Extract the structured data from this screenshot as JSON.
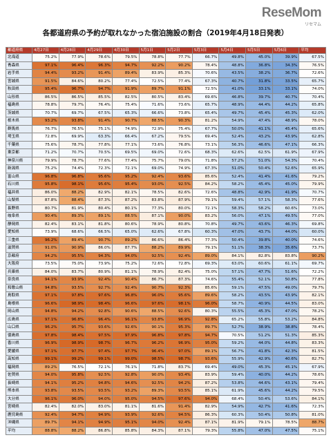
{
  "logo": {
    "name": "ReseMom",
    "sub": "リセマム"
  },
  "title": "各都道府県の予約が取れなかった宿泊施設の割合（2019年4月18日発表）",
  "table": {
    "header": [
      "都道府県",
      "4月27日",
      "4月28日",
      "4月29日",
      "4月30日",
      "5月1日",
      "5月2日",
      "5月3日",
      "5月4日",
      "5月5日",
      "5月6日",
      "平均"
    ],
    "rows": [
      [
        "北海道",
        "75.2%",
        "77.9%",
        "78.6%",
        "79.5%",
        "78.8%",
        "77.7%",
        "66.7%",
        "49.8%",
        "45.0%",
        "39.9%",
        "67.5%"
      ],
      [
        "青森県",
        "97.1%",
        "96.4%",
        "96.3%",
        "94.7%",
        "92.2%",
        "90.2%",
        "78.4%",
        "48.8%",
        "36.8%",
        "34.3%",
        "76.5%"
      ],
      [
        "岩手県",
        "94.4%",
        "93.2%",
        "91.4%",
        "89.4%",
        "83.9%",
        "85.3%",
        "70.6%",
        "43.5%",
        "38.2%",
        "36.7%",
        "72.6%"
      ],
      [
        "宮城県",
        "91.5%",
        "84.6%",
        "80.2%",
        "77.4%",
        "72.5%",
        "77.4%",
        "67.3%",
        "40.7%",
        "31.8%",
        "33.5%",
        "65.7%"
      ],
      [
        "秋田県",
        "95.4%",
        "96.7%",
        "94.7%",
        "91.9%",
        "89.7%",
        "91.1%",
        "72.5%",
        "41.0%",
        "33.1%",
        "33.1%",
        "74.0%"
      ],
      [
        "山形県",
        "86.5%",
        "86.5%",
        "85.5%",
        "82.5%",
        "80.5%",
        "83.4%",
        "69.6%",
        "46.8%",
        "39.7%",
        "40.7%",
        "70.4%"
      ],
      [
        "福島県",
        "78.8%",
        "79.7%",
        "76.4%",
        "75.4%",
        "71.6%",
        "73.6%",
        "65.7%",
        "48.9%",
        "44.4%",
        "44.2%",
        "65.8%"
      ],
      [
        "茨城県",
        "70.7%",
        "69.7%",
        "67.5%",
        "65.3%",
        "66.6%",
        "73.8%",
        "65.4%",
        "49.7%",
        "45.4%",
        "45.3%",
        "62.0%"
      ],
      [
        "栃木県",
        "93.2%",
        "93.8%",
        "91.4%",
        "90.7%",
        "88.5%",
        "90.3%",
        "81.2%",
        "54.9%",
        "47.4%",
        "48.9%",
        "78.0%"
      ],
      [
        "群馬県",
        "76.7%",
        "76.5%",
        "75.1%",
        "74.9%",
        "72.9%",
        "75.4%",
        "67.7%",
        "50.0%",
        "41.1%",
        "45.4%",
        "65.6%"
      ],
      [
        "埼玉県",
        "72.8%",
        "69.9%",
        "63.3%",
        "66.4%",
        "67.2%",
        "79.5%",
        "69.4%",
        "52.4%",
        "43.2%",
        "43.9%",
        "62.8%"
      ],
      [
        "千葉県",
        "75.6%",
        "78.7%",
        "77.8%",
        "77.1%",
        "73.6%",
        "76.8%",
        "73.1%",
        "56.3%",
        "46.6%",
        "47.1%",
        "66.3%"
      ],
      [
        "東京都",
        "71.2%",
        "70.7%",
        "70.5%",
        "69.5%",
        "69.0%",
        "72.6%",
        "68.3%",
        "62.6%",
        "62.5%",
        "61.9%",
        "67.9%"
      ],
      [
        "神奈川県",
        "79.9%",
        "78.7%",
        "77.6%",
        "77.4%",
        "75.7%",
        "79.0%",
        "71.8%",
        "57.2%",
        "51.0%",
        "54.3%",
        "70.4%"
      ],
      [
        "新潟県",
        "75.2%",
        "74.4%",
        "72.3%",
        "72.1%",
        "69.0%",
        "74.9%",
        "67.3%",
        "51.0%",
        "50.4%",
        "52.6%",
        "65.9%"
      ],
      [
        "富山県",
        "96.8%",
        "96.8%",
        "95.6%",
        "95.2%",
        "92.4%",
        "93.6%",
        "85.6%",
        "52.4%",
        "41.4%",
        "41.6%",
        "79.2%"
      ],
      [
        "石川県",
        "95.8%",
        "98.1%",
        "95.6%",
        "95.4%",
        "93.0%",
        "92.5%",
        "84.2%",
        "58.2%",
        "45.4%",
        "45.0%",
        "79.9%"
      ],
      [
        "福井県",
        "86.0%",
        "88.2%",
        "82.9%",
        "82.1%",
        "78.5%",
        "82.6%",
        "72.6%",
        "48.8%",
        "42.9%",
        "41.9%",
        "70.7%"
      ],
      [
        "山梨県",
        "87.8%",
        "88.4%",
        "87.3%",
        "87.2%",
        "83.8%",
        "87.9%",
        "79.1%",
        "59.4%",
        "57.1%",
        "58.3%",
        "77.6%"
      ],
      [
        "長野県",
        "80.7%",
        "81.9%",
        "80.4%",
        "80.1%",
        "77.3%",
        "80.0%",
        "72.1%",
        "58.3%",
        "58.2%",
        "60.6%",
        "73.0%"
      ],
      [
        "岐阜県",
        "90.4%",
        "89.3%",
        "89.1%",
        "88.5%",
        "87.1%",
        "90.0%",
        "83.2%",
        "56.0%",
        "47.1%",
        "49.5%",
        "77.0%"
      ],
      [
        "静岡県",
        "82.4%",
        "83.1%",
        "81.8%",
        "80.6%",
        "78.9%",
        "80.8%",
        "70.8%",
        "49.7%",
        "43.6%",
        "46.3%",
        "69.8%"
      ],
      [
        "愛知県",
        "73.9%",
        "68.6%",
        "66.5%",
        "65.0%",
        "62.6%",
        "67.8%",
        "60.3%",
        "47.0%",
        "43.7%",
        "44.0%",
        "60.0%"
      ],
      [
        "三重県",
        "96.2%",
        "89.4%",
        "90.7%",
        "89.2%",
        "86.6%",
        "86.4%",
        "77.3%",
        "50.4%",
        "39.8%",
        "40.0%",
        "74.6%"
      ],
      [
        "滋賀県",
        "91.0%",
        "90.9%",
        "86.0%",
        "87.7%",
        "88.2%",
        "89.9%",
        "79.1%",
        "51.1%",
        "38.3%",
        "35.6%",
        "73.7%"
      ],
      [
        "京都府",
        "94.2%",
        "95.5%",
        "94.3%",
        "94.0%",
        "92.5%",
        "92.4%",
        "89.0%",
        "84.1%",
        "82.8%",
        "83.8%",
        "90.2%"
      ],
      [
        "大阪府",
        "73.5%",
        "75.0%",
        "73.9%",
        "75.2%",
        "72.6%",
        "72.8%",
        "69.3%",
        "63.0%",
        "60.6%",
        "61.1%",
        "69.7%"
      ],
      [
        "兵庫県",
        "84.0%",
        "83.7%",
        "80.9%",
        "81.1%",
        "78.9%",
        "82.4%",
        "75.0%",
        "57.1%",
        "47.7%",
        "51.6%",
        "72.2%"
      ],
      [
        "奈良県",
        "94.1%",
        "93.9%",
        "92.4%",
        "90.4%",
        "86.7%",
        "87.3%",
        "74.6%",
        "55.4%",
        "52.1%",
        "50.8%",
        "77.8%"
      ],
      [
        "和歌山県",
        "94.8%",
        "93.5%",
        "92.7%",
        "92.4%",
        "90.7%",
        "92.3%",
        "85.6%",
        "59.1%",
        "47.5%",
        "49.0%",
        "79.7%"
      ],
      [
        "鳥取県",
        "97.1%",
        "97.8%",
        "97.6%",
        "96.8%",
        "96.0%",
        "95.6%",
        "89.6%",
        "58.2%",
        "43.5%",
        "43.9%",
        "82.1%"
      ],
      [
        "島根県",
        "96.6%",
        "98.9%",
        "98.4%",
        "96.6%",
        "97.6%",
        "98.1%",
        "96.0%",
        "58.7%",
        "40.9%",
        "44.5%",
        "83.0%"
      ],
      [
        "岡山県",
        "94.8%",
        "94.2%",
        "92.8%",
        "90.6%",
        "88.5%",
        "92.6%",
        "80.3%",
        "55.5%",
        "45.3%",
        "47.0%",
        "78.2%"
      ],
      [
        "広島県",
        "97.1%",
        "96.8%",
        "96.4%",
        "96.1%",
        "93.8%",
        "96.9%",
        "92.8%",
        "65.2%",
        "55.8%",
        "53.2%",
        "84.8%"
      ],
      [
        "山口県",
        "96.2%",
        "95.7%",
        "93.6%",
        "92.6%",
        "90.1%",
        "95.3%",
        "89.7%",
        "52.7%",
        "38.9%",
        "38.8%",
        "78.4%"
      ],
      [
        "徳島県",
        "97.8%",
        "98.4%",
        "97.5%",
        "97.9%",
        "96.8%",
        "97.8%",
        "94.7%",
        "70.5%",
        "51.2%",
        "51.3%",
        "85.3%"
      ],
      [
        "香川県",
        "96.9%",
        "98.9%",
        "98.7%",
        "96.7%",
        "96.2%",
        "96.9%",
        "95.0%",
        "59.2%",
        "44.0%",
        "44.8%",
        "83.3%"
      ],
      [
        "愛媛県",
        "97.1%",
        "97.7%",
        "97.4%",
        "97.7%",
        "96.4%",
        "97.0%",
        "89.1%",
        "56.7%",
        "41.8%",
        "42.3%",
        "81.5%"
      ],
      [
        "高知県",
        "99.1%",
        "99.2%",
        "99.1%",
        "99.0%",
        "98.5%",
        "98.7%",
        "93.6%",
        "55.9%",
        "42.9%",
        "40.6%",
        "82.7%"
      ],
      [
        "福岡県",
        "89.2%",
        "76.5%",
        "72.1%",
        "76.1%",
        "71.8%",
        "83.7%",
        "69.4%",
        "49.0%",
        "45.3%",
        "45.1%",
        "67.9%"
      ],
      [
        "佐賀県",
        "94.0%",
        "95.8%",
        "92.5%",
        "92.8%",
        "90.0%",
        "93.4%",
        "83.9%",
        "59.4%",
        "40.0%",
        "44.2%",
        "78.6%"
      ],
      [
        "長崎県",
        "94.1%",
        "95.2%",
        "94.8%",
        "94.6%",
        "92.5%",
        "94.2%",
        "87.2%",
        "53.8%",
        "44.6%",
        "43.1%",
        "79.4%"
      ],
      [
        "熊本県",
        "93.8%",
        "93.5%",
        "93.5%",
        "93.2%",
        "89.3%",
        "93.5%",
        "85.1%",
        "61.9%",
        "45.6%",
        "44.2%",
        "79.5%"
      ],
      [
        "大分県",
        "96.1%",
        "96.0%",
        "94.0%",
        "95.0%",
        "94.5%",
        "97.6%",
        "94.0%",
        "68.4%",
        "50.4%",
        "53.6%",
        "84.1%"
      ],
      [
        "宮崎県",
        "82.4%",
        "82.0%",
        "83.0%",
        "81.1%",
        "81.6%",
        "91.4%",
        "82.9%",
        "54.9%",
        "42.7%",
        "41.6%",
        "72.3%"
      ],
      [
        "鹿児島県",
        "92.4%",
        "94.7%",
        "94.9%",
        "93.9%",
        "92.6%",
        "94.5%",
        "86.3%",
        "60.3%",
        "50.4%",
        "50.8%",
        "81.0%"
      ],
      [
        "沖縄県",
        "89.7%",
        "94.1%",
        "94.9%",
        "95.1%",
        "94.0%",
        "92.4%",
        "87.1%",
        "81.9%",
        "79.1%",
        "78.5%",
        "88.7%"
      ],
      [
        "平均",
        "88.8%",
        "88.2%",
        "86.8%",
        "85.8%",
        "84.3%",
        "87.1%",
        "79.3%",
        "55.8%",
        "47.0%",
        "47.5%",
        "75.1%"
      ]
    ]
  }
}
